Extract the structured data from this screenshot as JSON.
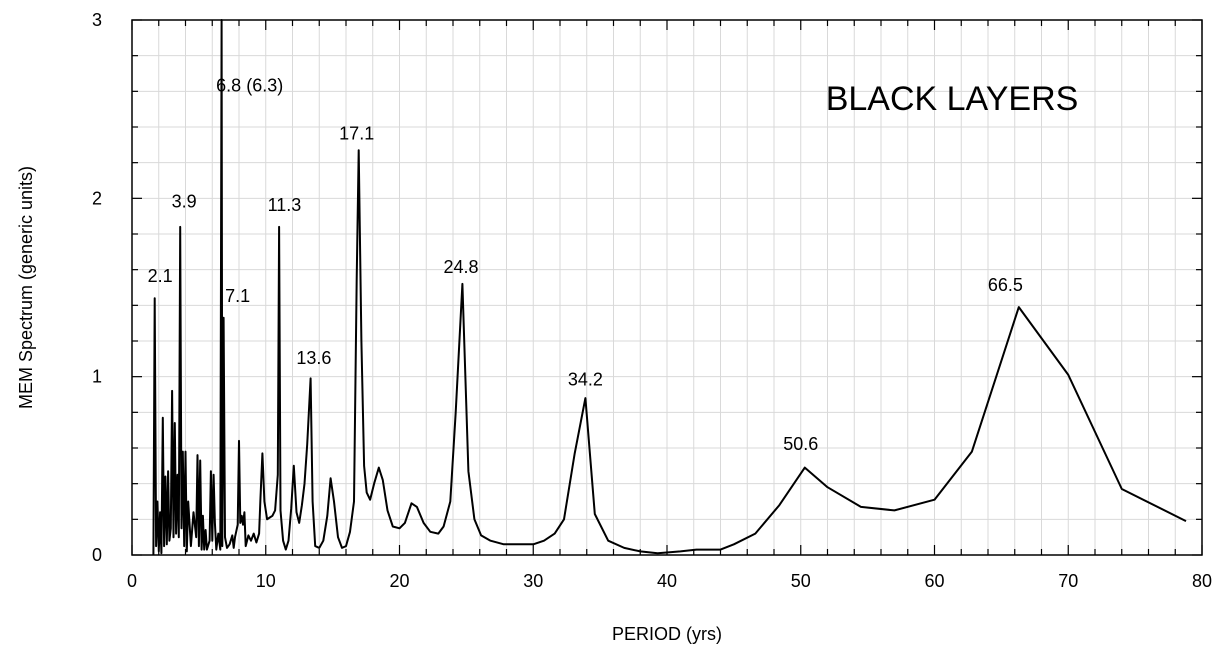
{
  "chart_data": {
    "type": "line",
    "title": "BLACK LAYERS",
    "xlabel": "PERIOD (yrs)",
    "ylabel": "MEM Spectrum (generic units)",
    "xlim": [
      0,
      80
    ],
    "ylim": [
      0,
      3
    ],
    "x_major_ticks": [
      0,
      10,
      20,
      30,
      40,
      50,
      60,
      70,
      80
    ],
    "y_major_ticks": [
      0,
      1,
      2,
      3
    ],
    "x_minor_step": 2,
    "y_minor_step": 0.2,
    "grid": true,
    "line_color": "#000000",
    "series": [
      {
        "points": [
          [
            1.6,
            0.0
          ],
          [
            1.7,
            1.44
          ],
          [
            1.8,
            0.05
          ],
          [
            1.9,
            0.3
          ],
          [
            2.0,
            0.02
          ],
          [
            2.1,
            0.24
          ],
          [
            2.2,
            0.01
          ],
          [
            2.3,
            0.77
          ],
          [
            2.4,
            0.05
          ],
          [
            2.5,
            0.44
          ],
          [
            2.6,
            0.06
          ],
          [
            2.7,
            0.47
          ],
          [
            2.8,
            0.08
          ],
          [
            2.9,
            0.15
          ],
          [
            3.0,
            0.92
          ],
          [
            3.1,
            0.1
          ],
          [
            3.2,
            0.74
          ],
          [
            3.3,
            0.12
          ],
          [
            3.4,
            0.45
          ],
          [
            3.5,
            0.1
          ],
          [
            3.6,
            1.84
          ],
          [
            3.7,
            0.15
          ],
          [
            3.8,
            0.58
          ],
          [
            3.9,
            0.05
          ],
          [
            4.0,
            0.58
          ],
          [
            4.1,
            0.02
          ],
          [
            4.2,
            0.3
          ],
          [
            4.4,
            0.05
          ],
          [
            4.6,
            0.24
          ],
          [
            4.8,
            0.1
          ],
          [
            4.9,
            0.56
          ],
          [
            5.0,
            0.05
          ],
          [
            5.1,
            0.53
          ],
          [
            5.2,
            0.03
          ],
          [
            5.3,
            0.22
          ],
          [
            5.4,
            0.03
          ],
          [
            5.5,
            0.14
          ],
          [
            5.6,
            0.03
          ],
          [
            5.8,
            0.08
          ],
          [
            5.9,
            0.47
          ],
          [
            6.0,
            0.08
          ],
          [
            6.1,
            0.45
          ],
          [
            6.2,
            0.18
          ],
          [
            6.3,
            0.03
          ],
          [
            6.45,
            0.12
          ],
          [
            6.6,
            0.03
          ],
          [
            6.7,
            3.0
          ],
          [
            6.75,
            0.05
          ],
          [
            6.85,
            1.33
          ],
          [
            6.95,
            0.1
          ],
          [
            7.1,
            0.04
          ],
          [
            7.3,
            0.06
          ],
          [
            7.5,
            0.11
          ],
          [
            7.6,
            0.04
          ],
          [
            7.7,
            0.1
          ],
          [
            7.9,
            0.17
          ],
          [
            8.0,
            0.64
          ],
          [
            8.1,
            0.18
          ],
          [
            8.2,
            0.22
          ],
          [
            8.3,
            0.17
          ],
          [
            8.4,
            0.24
          ],
          [
            8.5,
            0.05
          ],
          [
            8.7,
            0.11
          ],
          [
            8.9,
            0.08
          ],
          [
            9.1,
            0.12
          ],
          [
            9.3,
            0.07
          ],
          [
            9.5,
            0.12
          ],
          [
            9.6,
            0.31
          ],
          [
            9.75,
            0.57
          ],
          [
            9.9,
            0.3
          ],
          [
            10.1,
            0.2
          ],
          [
            10.3,
            0.21
          ],
          [
            10.5,
            0.22
          ],
          [
            10.7,
            0.25
          ],
          [
            10.9,
            0.45
          ],
          [
            11.0,
            1.84
          ],
          [
            11.1,
            0.25
          ],
          [
            11.3,
            0.08
          ],
          [
            11.5,
            0.03
          ],
          [
            11.7,
            0.08
          ],
          [
            11.9,
            0.26
          ],
          [
            12.1,
            0.5
          ],
          [
            12.3,
            0.24
          ],
          [
            12.5,
            0.18
          ],
          [
            12.7,
            0.28
          ],
          [
            12.9,
            0.4
          ],
          [
            13.1,
            0.62
          ],
          [
            13.35,
            0.99
          ],
          [
            13.5,
            0.3
          ],
          [
            13.7,
            0.05
          ],
          [
            14.0,
            0.04
          ],
          [
            14.3,
            0.08
          ],
          [
            14.6,
            0.22
          ],
          [
            14.85,
            0.43
          ],
          [
            15.1,
            0.3
          ],
          [
            15.4,
            0.1
          ],
          [
            15.7,
            0.04
          ],
          [
            16.0,
            0.05
          ],
          [
            16.3,
            0.13
          ],
          [
            16.6,
            0.3
          ],
          [
            16.8,
            1.55
          ],
          [
            16.95,
            2.27
          ],
          [
            17.15,
            1.2
          ],
          [
            17.35,
            0.5
          ],
          [
            17.55,
            0.35
          ],
          [
            17.8,
            0.31
          ],
          [
            18.1,
            0.4
          ],
          [
            18.45,
            0.49
          ],
          [
            18.75,
            0.42
          ],
          [
            19.1,
            0.25
          ],
          [
            19.5,
            0.16
          ],
          [
            20.0,
            0.15
          ],
          [
            20.4,
            0.18
          ],
          [
            20.9,
            0.29
          ],
          [
            21.3,
            0.27
          ],
          [
            21.8,
            0.18
          ],
          [
            22.3,
            0.13
          ],
          [
            22.9,
            0.12
          ],
          [
            23.3,
            0.16
          ],
          [
            23.8,
            0.3
          ],
          [
            24.2,
            0.8
          ],
          [
            24.7,
            1.52
          ],
          [
            25.15,
            0.47
          ],
          [
            25.6,
            0.2
          ],
          [
            26.1,
            0.11
          ],
          [
            26.8,
            0.08
          ],
          [
            27.8,
            0.06
          ],
          [
            29.0,
            0.06
          ],
          [
            30.0,
            0.06
          ],
          [
            30.8,
            0.08
          ],
          [
            31.6,
            0.12
          ],
          [
            32.3,
            0.2
          ],
          [
            33.1,
            0.57
          ],
          [
            33.9,
            0.88
          ],
          [
            34.6,
            0.23
          ],
          [
            35.6,
            0.08
          ],
          [
            36.8,
            0.04
          ],
          [
            38.0,
            0.02
          ],
          [
            39.3,
            0.01
          ],
          [
            41.0,
            0.02
          ],
          [
            42.2,
            0.03
          ],
          [
            44.0,
            0.03
          ],
          [
            45.0,
            0.06
          ],
          [
            46.6,
            0.12
          ],
          [
            48.4,
            0.28
          ],
          [
            50.3,
            0.49
          ],
          [
            52.0,
            0.38
          ],
          [
            54.5,
            0.27
          ],
          [
            57.0,
            0.25
          ],
          [
            60.0,
            0.31
          ],
          [
            62.8,
            0.58
          ],
          [
            66.3,
            1.39
          ],
          [
            70.0,
            1.01
          ],
          [
            74.0,
            0.37
          ],
          [
            78.8,
            0.19
          ]
        ]
      }
    ],
    "annotations": [
      {
        "text": "2.1",
        "x": 2.1,
        "y": 1.53
      },
      {
        "text": "3.9",
        "x": 3.9,
        "y": 1.95
      },
      {
        "text": "6.8 (6.3)",
        "x": 8.8,
        "y": 2.6
      },
      {
        "text": "7.1",
        "x": 7.9,
        "y": 1.42
      },
      {
        "text": "11.3",
        "x": 11.4,
        "y": 1.93
      },
      {
        "text": "13.6",
        "x": 13.6,
        "y": 1.07
      },
      {
        "text": "17.1",
        "x": 16.8,
        "y": 2.33
      },
      {
        "text": "24.8",
        "x": 24.6,
        "y": 1.58
      },
      {
        "text": "34.2",
        "x": 33.9,
        "y": 0.95
      },
      {
        "text": "50.6",
        "x": 50.0,
        "y": 0.59
      },
      {
        "text": "66.5",
        "x": 65.3,
        "y": 1.48
      }
    ],
    "title_position": "top-right"
  }
}
